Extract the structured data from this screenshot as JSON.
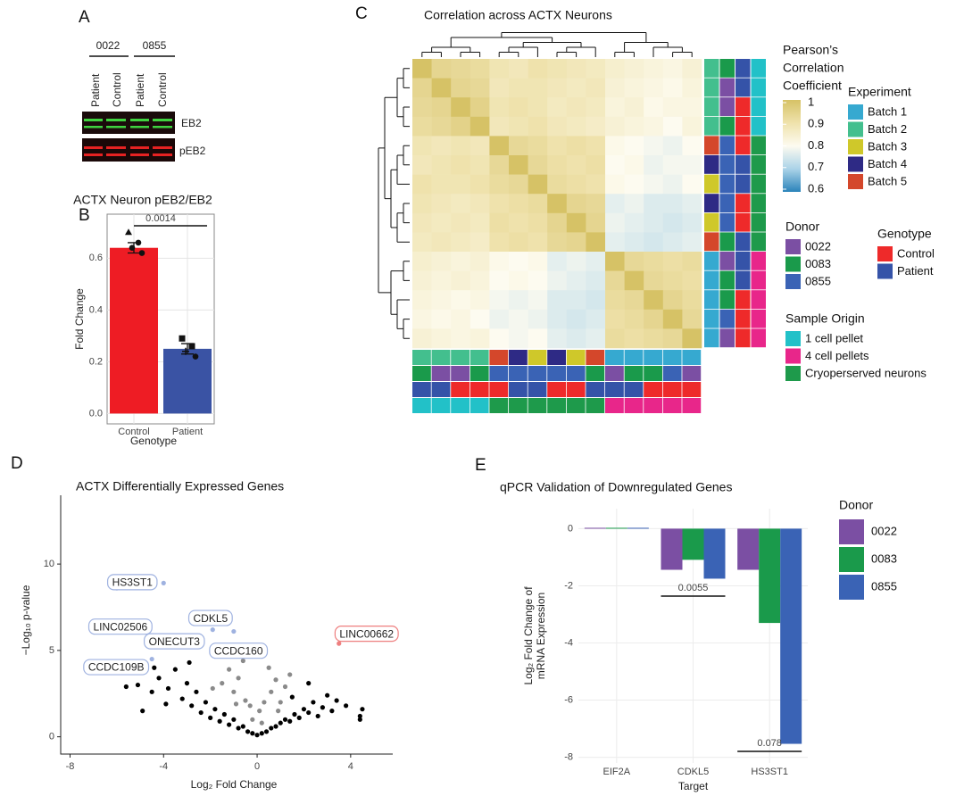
{
  "panels": [
    "A",
    "B",
    "C",
    "D",
    "E"
  ],
  "blot": {
    "donors": [
      "0022",
      "0855"
    ],
    "lanes": [
      "Patient",
      "Control",
      "Patient",
      "Control"
    ],
    "bands": [
      "EB2",
      "pEB2"
    ]
  },
  "chart_data": [
    {
      "type": "bar",
      "title": "ACTX Neuron pEB2/EB2",
      "xlabel": "Genotype",
      "ylabel": "Fold Change",
      "categories": [
        "Control",
        "Patient"
      ],
      "values": [
        0.64,
        0.25
      ],
      "errors": [
        0.02,
        0.02
      ],
      "points": [
        [
          0.7,
          0.66,
          0.64,
          0.62
        ],
        [
          0.29,
          0.26,
          0.24,
          0.22
        ]
      ],
      "colors": [
        "#ee1c24",
        "#3a53a4"
      ],
      "annotation": "0.0014",
      "ylim": [
        -0.04,
        0.77
      ],
      "yticks": [
        {
          "value": 0,
          "label": "0.0"
        },
        0.2,
        0.4,
        0.6
      ],
      "grid": true
    },
    {
      "type": "heatmap",
      "title": "Correlation across ACTX Neurons",
      "values": [
        [
          1,
          0.94,
          0.93,
          0.92,
          0.89,
          0.88,
          0.9,
          0.89,
          0.88,
          0.87,
          0.85,
          0.84,
          0.83,
          0.82,
          0.84
        ],
        [
          0.94,
          1,
          0.94,
          0.93,
          0.88,
          0.89,
          0.89,
          0.88,
          0.87,
          0.88,
          0.84,
          0.83,
          0.82,
          0.81,
          0.83
        ],
        [
          0.93,
          0.94,
          1,
          0.95,
          0.89,
          0.9,
          0.89,
          0.87,
          0.88,
          0.87,
          0.83,
          0.84,
          0.81,
          0.82,
          0.82
        ],
        [
          0.92,
          0.93,
          0.95,
          1,
          0.88,
          0.89,
          0.9,
          0.88,
          0.87,
          0.86,
          0.84,
          0.83,
          0.82,
          0.8,
          0.83
        ],
        [
          0.89,
          0.88,
          0.89,
          0.88,
          1,
          0.93,
          0.92,
          0.9,
          0.91,
          0.9,
          0.81,
          0.8,
          0.79,
          0.78,
          0.8
        ],
        [
          0.88,
          0.89,
          0.9,
          0.89,
          0.93,
          1,
          0.93,
          0.91,
          0.9,
          0.91,
          0.8,
          0.81,
          0.78,
          0.79,
          0.79
        ],
        [
          0.9,
          0.89,
          0.89,
          0.9,
          0.92,
          0.93,
          1,
          0.92,
          0.91,
          0.9,
          0.81,
          0.8,
          0.79,
          0.78,
          0.8
        ],
        [
          0.89,
          0.88,
          0.87,
          0.88,
          0.9,
          0.91,
          0.92,
          1,
          0.94,
          0.93,
          0.77,
          0.78,
          0.76,
          0.76,
          0.77
        ],
        [
          0.88,
          0.87,
          0.88,
          0.87,
          0.91,
          0.9,
          0.91,
          0.94,
          1,
          0.94,
          0.78,
          0.77,
          0.76,
          0.75,
          0.76
        ],
        [
          0.87,
          0.88,
          0.87,
          0.86,
          0.9,
          0.91,
          0.9,
          0.93,
          0.94,
          1,
          0.77,
          0.76,
          0.75,
          0.76,
          0.77
        ],
        [
          0.85,
          0.84,
          0.83,
          0.84,
          0.81,
          0.8,
          0.81,
          0.77,
          0.78,
          0.77,
          1,
          0.93,
          0.92,
          0.91,
          0.92
        ],
        [
          0.84,
          0.83,
          0.84,
          0.83,
          0.8,
          0.81,
          0.8,
          0.78,
          0.77,
          0.76,
          0.93,
          1,
          0.93,
          0.92,
          0.91
        ],
        [
          0.83,
          0.82,
          0.81,
          0.82,
          0.79,
          0.78,
          0.79,
          0.76,
          0.76,
          0.75,
          0.92,
          0.93,
          1,
          0.94,
          0.92
        ],
        [
          0.82,
          0.81,
          0.82,
          0.8,
          0.78,
          0.79,
          0.78,
          0.76,
          0.75,
          0.76,
          0.91,
          0.92,
          0.94,
          1,
          0.93
        ],
        [
          0.84,
          0.83,
          0.82,
          0.83,
          0.8,
          0.79,
          0.8,
          0.77,
          0.76,
          0.77,
          0.92,
          0.91,
          0.92,
          0.93,
          1
        ]
      ],
      "colorbar_title": [
        "Pearson’s",
        "Correlation",
        "Coefficient"
      ],
      "colorlim": [
        0.6,
        1
      ],
      "colorticks": [
        1,
        0.9,
        0.8,
        0.7,
        0.6
      ],
      "colorscale": [
        "#2b83ba",
        "#abd3e8",
        "#fdfbf0",
        "#efe2ac",
        "#d6c266"
      ],
      "tracks": [
        {
          "name": "Experiment",
          "levels": [
            "Batch 1",
            "Batch 2",
            "Batch 3",
            "Batch 4",
            "Batch 5"
          ],
          "colors": [
            "#36a9d0",
            "#43bf8e",
            "#cfc82a",
            "#2e2a85",
            "#d4472b"
          ],
          "values": [
            "Batch 2",
            "Batch 2",
            "Batch 2",
            "Batch 2",
            "Batch 5",
            "Batch 4",
            "Batch 3",
            "Batch 4",
            "Batch 3",
            "Batch 5",
            "Batch 1",
            "Batch 1",
            "Batch 1",
            "Batch 1",
            "Batch 1"
          ]
        },
        {
          "name": "Donor",
          "levels": [
            "0022",
            "0083",
            "0855"
          ],
          "colors": [
            "#7b4fa3",
            "#1a9a4b",
            "#3a63b5"
          ],
          "values": [
            "0083",
            "0022",
            "0022",
            "0083",
            "0855",
            "0855",
            "0855",
            "0855",
            "0855",
            "0083",
            "0022",
            "0083",
            "0083",
            "0855",
            "0022"
          ]
        },
        {
          "name": "Genotype",
          "levels": [
            "Control",
            "Patient"
          ],
          "colors": [
            "#ee2a2a",
            "#3553a8"
          ],
          "values": [
            "Patient",
            "Patient",
            "Control",
            "Control",
            "Control",
            "Patient",
            "Patient",
            "Control",
            "Control",
            "Patient",
            "Patient",
            "Patient",
            "Control",
            "Control",
            "Control"
          ]
        },
        {
          "name": "Sample Origin",
          "levels": [
            "1 cell pellet",
            "4 cell pellets",
            "Cryoperserved neurons"
          ],
          "colors": [
            "#22c1c8",
            "#e8268a",
            "#1e9a4b"
          ],
          "values": [
            "1 cell pellet",
            "1 cell pellet",
            "1 cell pellet",
            "1 cell pellet",
            "Cryoperserved neurons",
            "Cryoperserved neurons",
            "Cryoperserved neurons",
            "Cryoperserved neurons",
            "Cryoperserved neurons",
            "Cryoperserved neurons",
            "4 cell pellets",
            "4 cell pellets",
            "4 cell pellets",
            "4 cell pellets",
            "4 cell pellets"
          ]
        }
      ]
    },
    {
      "type": "scatter",
      "title": "ACTX Differentially Expressed Genes",
      "xlabel": "Log₂ Fold Change",
      "ylabel": "−Log₁₀ p-value",
      "xlim": [
        -8.4,
        5.8
      ],
      "ylim": [
        -1,
        14.5
      ],
      "xticks": [
        -8,
        -4,
        0,
        4
      ],
      "yticks": [
        0,
        5,
        10
      ],
      "series": [
        {
          "color": "#000000",
          "x": [
            -4.9,
            -5.6,
            -5.1,
            -4.5,
            -4.2,
            -3.8,
            -3.5,
            -3.2,
            -3.0,
            -2.8,
            -2.6,
            -2.4,
            -2.2,
            -2.0,
            -1.8,
            -1.6,
            -1.4,
            -1.2,
            -1.0,
            -0.8,
            -0.6,
            -0.4,
            -0.2,
            0,
            0.2,
            0.4,
            0.6,
            0.8,
            1.0,
            1.2,
            1.4,
            1.6,
            1.8,
            2.0,
            2.2,
            2.4,
            2.6,
            2.8,
            3.0,
            3.2,
            3.4,
            3.8,
            4.4,
            4.5,
            4.4,
            -3.9,
            -4.4,
            -2.9,
            2.2,
            1.5
          ],
          "y": [
            1.5,
            2.9,
            3.0,
            2.6,
            3.4,
            2.8,
            3.9,
            2.2,
            3.1,
            1.8,
            2.6,
            1.4,
            2.0,
            1.1,
            1.6,
            0.9,
            1.3,
            0.7,
            1.0,
            0.5,
            0.6,
            0.3,
            0.2,
            0.1,
            0.2,
            0.3,
            0.5,
            0.6,
            0.8,
            1.0,
            0.9,
            1.3,
            1.1,
            1.6,
            1.4,
            2.0,
            1.2,
            1.7,
            2.4,
            1.5,
            2.1,
            1.8,
            1.2,
            1.6,
            1.0,
            1.9,
            4.0,
            4.3,
            3.1,
            2.3
          ]
        },
        {
          "color": "#8a8a8a",
          "x": [
            -1.5,
            -1.0,
            -0.8,
            -0.5,
            -0.3,
            0.1,
            0.3,
            0.6,
            0.8,
            1.0,
            1.2,
            1.4,
            -1.9,
            -1.2,
            -0.6,
            0.5,
            -0.2,
            0.2,
            -0.9,
            0.9
          ],
          "y": [
            3.1,
            2.6,
            3.4,
            2.1,
            1.8,
            1.5,
            2.0,
            2.6,
            3.3,
            2.0,
            2.9,
            3.6,
            2.8,
            3.9,
            4.4,
            4.0,
            1.0,
            0.8,
            1.9,
            1.5
          ]
        },
        {
          "color": "#9fb2e0",
          "labels": [
            "HS3ST1",
            "LINC02506",
            "CDKL5",
            "ONECUT3",
            "CCDC160",
            "CCDC109B"
          ],
          "x": [
            -4.0,
            -6.0,
            -1.0,
            -1.9,
            -2.4,
            -4.5
          ],
          "y": [
            8.9,
            8.6,
            6.1,
            6.2,
            5.5,
            4.5
          ]
        },
        {
          "color": "#ee7f7f",
          "labels": [
            "LINC00662"
          ],
          "x": [
            3.5
          ],
          "y": [
            5.4
          ]
        }
      ]
    },
    {
      "type": "grouped_bar",
      "title": "qPCR Validation of Downregulated Genes",
      "xlabel": "Target",
      "ylabel": [
        "Log₂ Fold Change of",
        "mRNA Expression"
      ],
      "legend_title": "Donor",
      "categories": [
        "EIF2A",
        "CDKL5",
        "HS3ST1"
      ],
      "series": [
        {
          "name": "0022",
          "color": "#7b4fa3",
          "values": [
            0.03,
            -1.44,
            -1.44
          ]
        },
        {
          "name": "0083",
          "color": "#1a9a4b",
          "values": [
            0.03,
            -1.09,
            -3.3
          ]
        },
        {
          "name": "0855",
          "color": "#3a63b5",
          "values": [
            0.03,
            -1.75,
            -7.53
          ]
        }
      ],
      "annotations": [
        "0.0055",
        "0.078"
      ],
      "ylim": [
        -8.2,
        0.7
      ],
      "yticks": [
        0,
        -2,
        -4,
        -6,
        -8
      ],
      "grid": true
    }
  ]
}
